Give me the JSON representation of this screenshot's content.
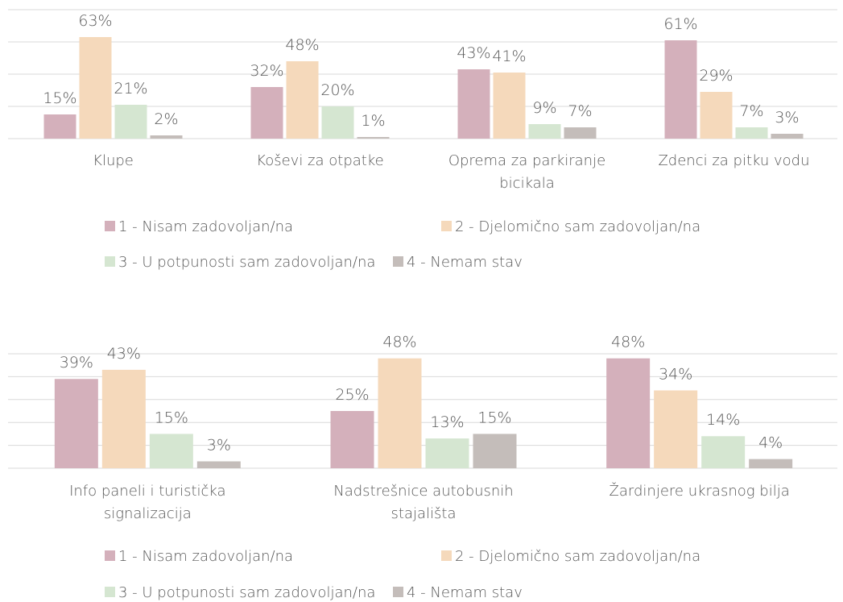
{
  "chart_data": [
    {
      "type": "bar",
      "categories": [
        "Klupe",
        "Koševi za otpatke",
        "Oprema za parkiranje bicikala",
        "Zdenci za pitku vodu"
      ],
      "series": [
        {
          "name": "1 - Nisam zadovoljan/na",
          "color": "#d4b0bb",
          "values": [
            15,
            32,
            43,
            61
          ],
          "value_labels": [
            "15%",
            "32%",
            "43%",
            "61%"
          ]
        },
        {
          "name": "2 - Djelomično sam zadovoljan/na",
          "color": "#f5d9bb",
          "values": [
            63,
            48,
            41,
            29
          ],
          "value_labels": [
            "63%",
            "48%",
            "41%",
            "29%"
          ]
        },
        {
          "name": "3 - U potpunosti sam zadovoljan/na",
          "color": "#d5e6d1",
          "values": [
            21,
            20,
            9,
            7
          ],
          "value_labels": [
            "21%",
            "20%",
            "9%",
            "7%"
          ]
        },
        {
          "name": "4 - Nemam stav",
          "color": "#c4bdba",
          "values": [
            2,
            1,
            7,
            3
          ],
          "value_labels": [
            "2%",
            "1%",
            "7%",
            "3%"
          ]
        }
      ],
      "ylim": [
        0,
        80
      ],
      "yticks": [
        0,
        20,
        40,
        60,
        80
      ],
      "grid": true,
      "legend": "bottom"
    },
    {
      "type": "bar",
      "categories": [
        "Info paneli i turistička signalizacija",
        "Nadstrešnice autobusnih stajališta",
        "Žardinjere ukrasnog bilja"
      ],
      "series": [
        {
          "name": "1 - Nisam zadovoljan/na",
          "color": "#d4b0bb",
          "values": [
            39,
            25,
            48
          ],
          "value_labels": [
            "39%",
            "25%",
            "48%"
          ]
        },
        {
          "name": "2 - Djelomično sam zadovoljan/na",
          "color": "#f5d9bb",
          "values": [
            43,
            48,
            34
          ],
          "value_labels": [
            "43%",
            "48%",
            "34%"
          ]
        },
        {
          "name": "3 - U potpunosti sam zadovoljan/na",
          "color": "#d5e6d1",
          "values": [
            15,
            13,
            14
          ],
          "value_labels": [
            "15%",
            "13%",
            "14%"
          ]
        },
        {
          "name": "4 - Nemam stav",
          "color": "#c4bdba",
          "values": [
            3,
            15,
            4
          ],
          "value_labels": [
            "3%",
            "15%",
            "4%"
          ]
        }
      ],
      "ylim": [
        0,
        50
      ],
      "yticks": [
        0,
        10,
        20,
        30,
        40,
        50
      ],
      "grid": true,
      "legend": "bottom"
    }
  ]
}
